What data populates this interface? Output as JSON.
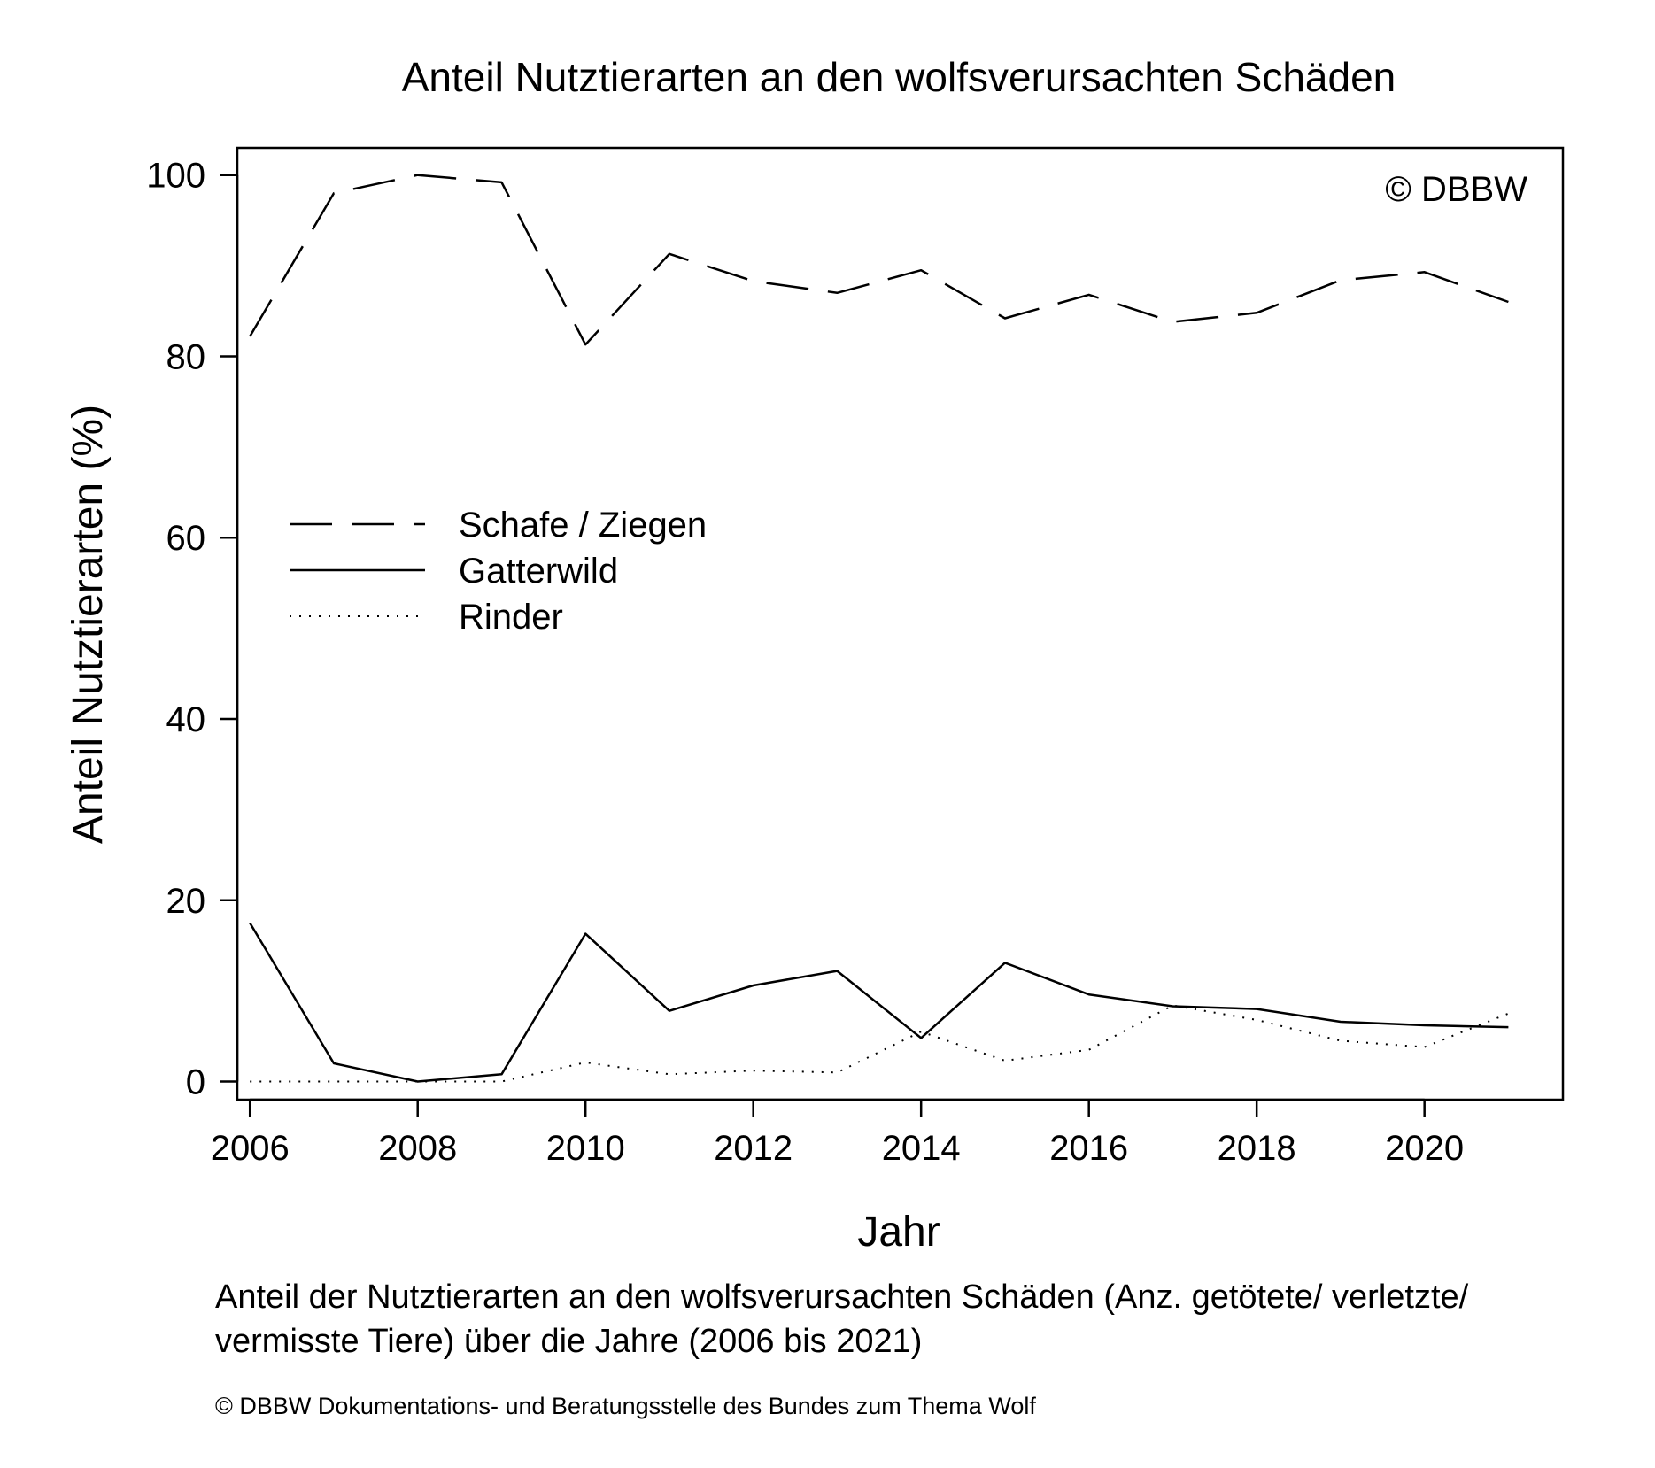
{
  "chart_data": {
    "type": "line",
    "title": "Anteil Nutztierarten an den wolfsverursachten Schäden",
    "xlabel": "Jahr",
    "ylabel": "Anteil Nutztierarten (%)",
    "watermark": "© DBBW",
    "xlim": [
      2005.85,
      2021.65
    ],
    "ylim": [
      -2,
      103
    ],
    "x_ticks": [
      2006,
      2008,
      2010,
      2012,
      2014,
      2016,
      2018,
      2020
    ],
    "y_ticks": [
      0,
      20,
      40,
      60,
      80,
      100
    ],
    "grid": false,
    "legend_position": "center-left",
    "x": [
      2006,
      2007,
      2008,
      2009,
      2010,
      2011,
      2012,
      2013,
      2014,
      2015,
      2016,
      2017,
      2018,
      2019,
      2020,
      2021
    ],
    "series": [
      {
        "name": "Schafe / Ziegen",
        "style": "dashed",
        "values": [
          82.2,
          98.0,
          100.0,
          99.2,
          81.3,
          91.3,
          88.3,
          87.0,
          89.5,
          84.2,
          86.8,
          83.8,
          84.8,
          88.4,
          89.3,
          86.0
        ]
      },
      {
        "name": "Gatterwild",
        "style": "solid",
        "values": [
          17.5,
          2.0,
          0.0,
          0.8,
          16.3,
          7.8,
          10.6,
          12.2,
          4.8,
          13.1,
          9.6,
          8.3,
          8.0,
          6.6,
          6.2,
          6.0
        ]
      },
      {
        "name": "Rinder",
        "style": "dotted",
        "values": [
          0.0,
          0.0,
          0.0,
          0.0,
          2.1,
          0.8,
          1.2,
          1.0,
          5.5,
          2.3,
          3.5,
          8.4,
          6.8,
          4.5,
          3.8,
          7.5
        ]
      }
    ]
  },
  "caption": {
    "line1": "Anteil der Nutztierarten an den wolfsverursachten Schäden (Anz. getötete/ verletzte/",
    "line2": "vermisste Tiere) über die Jahre (2006 bis 2021)",
    "source": "© DBBW Dokumentations- und Beratungsstelle des Bundes zum Thema Wolf"
  }
}
